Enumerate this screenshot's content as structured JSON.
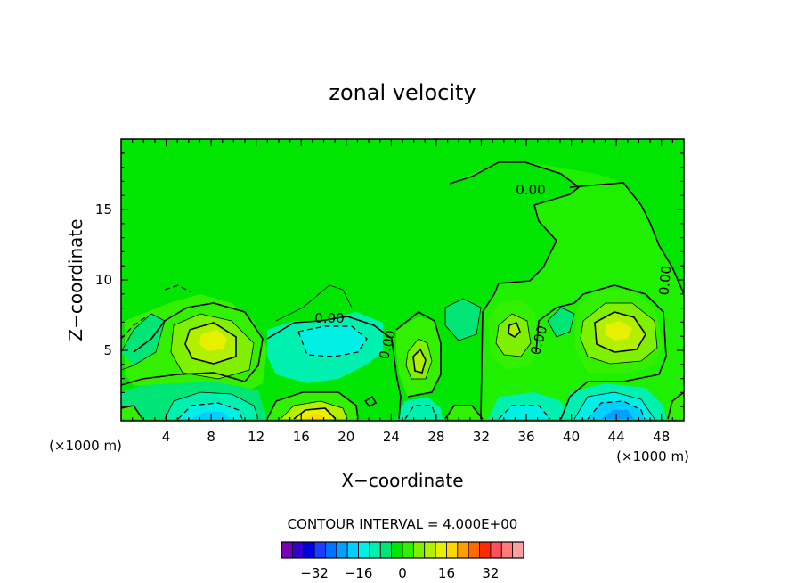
{
  "chart_data": {
    "type": "heatmap",
    "title": "zonal velocity",
    "xlabel": "X−coordinate",
    "ylabel": "Z−coordinate",
    "x_unit_left": "(×1000 m)",
    "x_unit_right": "(×1000 m)",
    "xlim": [
      0,
      50
    ],
    "ylim": [
      0,
      20
    ],
    "x_ticks": [
      4,
      8,
      12,
      16,
      20,
      24,
      28,
      32,
      36,
      40,
      44,
      48
    ],
    "y_ticks": [
      5,
      10,
      15
    ],
    "grid": false,
    "contour_interval_text": "CONTOUR INTERVAL = 4.000E+00",
    "contour_labels": [
      "0.00",
      "0.00",
      "0.00",
      "0.00",
      "0.00",
      "0.00"
    ],
    "colorbar": {
      "levels": [
        -36,
        -32,
        -28,
        -24,
        -20,
        -16,
        -12,
        -8,
        -4,
        0,
        4,
        8,
        12,
        16,
        20,
        24,
        28,
        32,
        36
      ],
      "tick_labels": [
        "−32",
        "−16",
        "0",
        "16",
        "32"
      ],
      "tick_values": [
        -32,
        -16,
        0,
        16,
        32
      ],
      "colors": [
        "#7a00b8",
        "#3300cc",
        "#0000e6",
        "#1f3dff",
        "#0072ff",
        "#00a0ff",
        "#00d0ff",
        "#00f0e6",
        "#00f0b0",
        "#00e676",
        "#00e600",
        "#33f000",
        "#7ff000",
        "#b3f000",
        "#e6f000",
        "#ffd700",
        "#ffa000",
        "#ff6a00",
        "#ff2a00",
        "#ff4f5a",
        "#ff7a7a",
        "#ffa0a0"
      ]
    },
    "field_features": [
      {
        "x": 8,
        "z": 6,
        "value": 16,
        "kind": "max"
      },
      {
        "x": 44,
        "z": 6.5,
        "value": 16,
        "kind": "max"
      },
      {
        "x": 35,
        "z": 6.5,
        "value": 12,
        "kind": "max"
      },
      {
        "x": 26.5,
        "z": 4,
        "value": 12,
        "kind": "max"
      },
      {
        "x": 18,
        "z": 0.5,
        "value": 20,
        "kind": "max"
      },
      {
        "x": 8,
        "z": 0.3,
        "value": -20,
        "kind": "min"
      },
      {
        "x": 44,
        "z": 0.5,
        "value": -20,
        "kind": "min"
      },
      {
        "x": 36,
        "z": 0.5,
        "value": -12,
        "kind": "min"
      },
      {
        "x": 20,
        "z": 6,
        "value": -8,
        "kind": "min"
      }
    ]
  }
}
